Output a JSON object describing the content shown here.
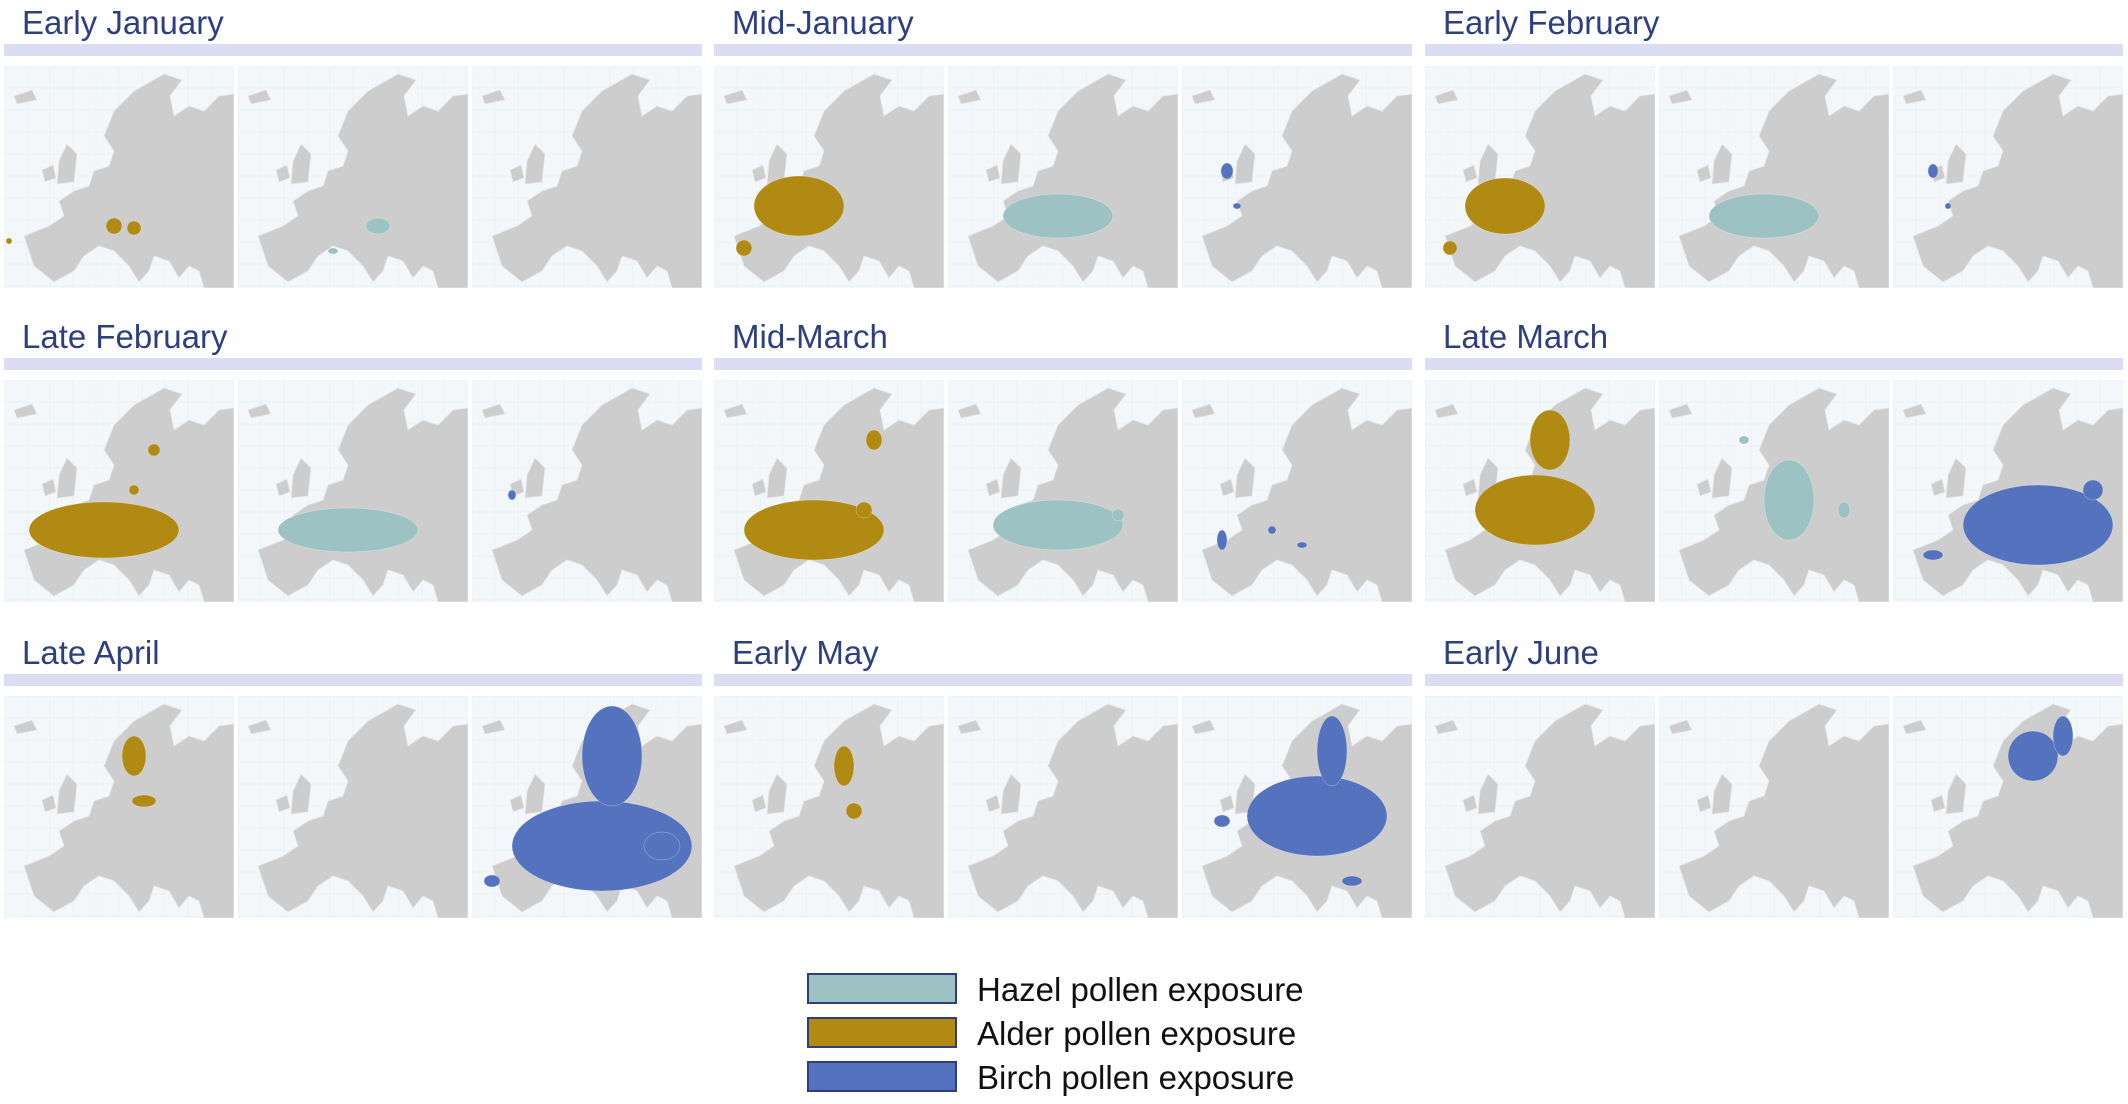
{
  "panels": [
    {
      "title": "Early January"
    },
    {
      "title": "Mid-January"
    },
    {
      "title": "Early February"
    },
    {
      "title": "Late February"
    },
    {
      "title": "Mid-March"
    },
    {
      "title": "Late March"
    },
    {
      "title": "Late April"
    },
    {
      "title": "Early May"
    },
    {
      "title": "Early June"
    }
  ],
  "legend": [
    {
      "label": "Hazel pollen exposure",
      "color": "#9cc2c3"
    },
    {
      "label": "Alder pollen exposure",
      "color": "#b08a12"
    },
    {
      "label": "Birch pollen exposure",
      "color": "#5472bd"
    }
  ]
}
